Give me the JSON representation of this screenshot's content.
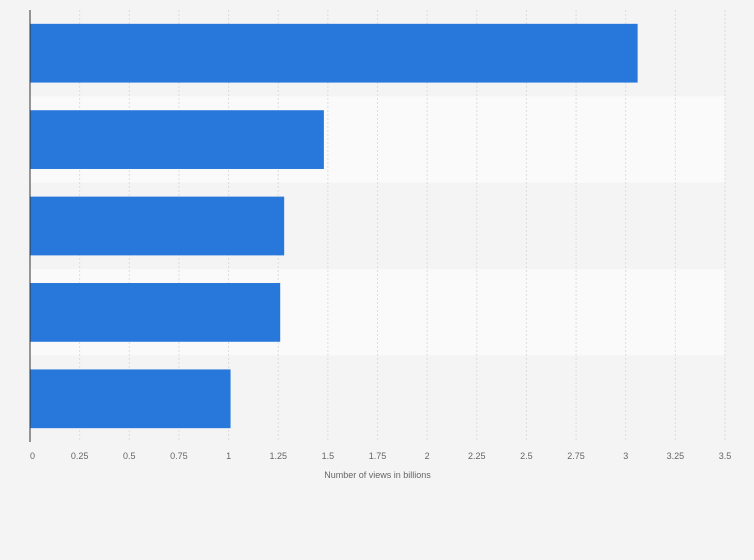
{
  "chart_data": {
    "type": "bar",
    "orientation": "horizontal",
    "categories": [
      "",
      "",
      "",
      "",
      ""
    ],
    "values": [
      3.06,
      1.48,
      1.28,
      1.26,
      1.01
    ],
    "xlabel": "Number of views in billions",
    "ylabel": "",
    "xlim": [
      0,
      3.5
    ],
    "xticks": [
      "0",
      "0.25",
      "0.5",
      "0.75",
      "1",
      "1.25",
      "1.5",
      "1.75",
      "2",
      "2.25",
      "2.5",
      "2.75",
      "3",
      "3.25",
      "3.5"
    ],
    "grid": true,
    "legend": "none",
    "bar_color": "#2878dc",
    "band_colors": [
      "#f4f4f4",
      "#fafafa"
    ],
    "axis_color": "#333333",
    "grid_color": "#dddddd"
  }
}
